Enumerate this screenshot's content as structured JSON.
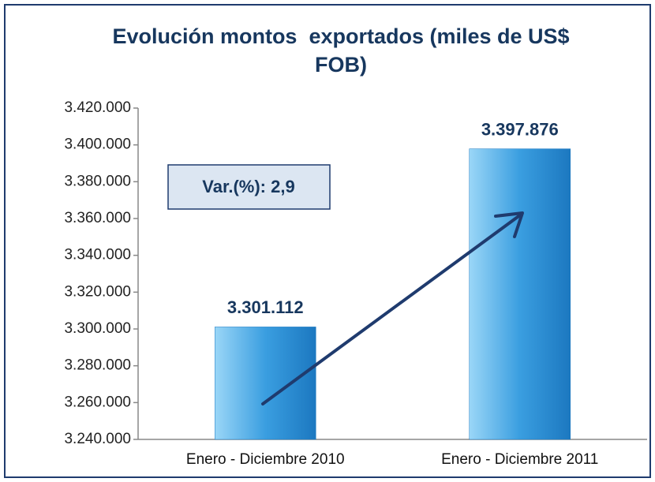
{
  "chart_data": {
    "type": "bar",
    "title": "Evolución montos  exportados (miles de US$ FOB)",
    "annotation": "Var.(%): 2,9",
    "categories": [
      "Enero - Diciembre 2010",
      "Enero - Diciembre 2011"
    ],
    "values": [
      3301112,
      3397876
    ],
    "value_labels": [
      "3.301.112",
      "3.397.876"
    ],
    "color": "#3a9ee0",
    "ylim": [
      3240000,
      3420000
    ],
    "yticks": [
      {
        "value": 3240000,
        "label": "3.240.000"
      },
      {
        "value": 3260000,
        "label": "3.260.000"
      },
      {
        "value": 3280000,
        "label": "3.280.000"
      },
      {
        "value": 3300000,
        "label": "3.300.000"
      },
      {
        "value": 3320000,
        "label": "3.320.000"
      },
      {
        "value": 3340000,
        "label": "3.340.000"
      },
      {
        "value": 3360000,
        "label": "3.360.000"
      },
      {
        "value": 3380000,
        "label": "3.380.000"
      },
      {
        "value": 3400000,
        "label": "3.400.000"
      },
      {
        "value": 3420000,
        "label": "3.420.000"
      }
    ],
    "grid": false
  }
}
